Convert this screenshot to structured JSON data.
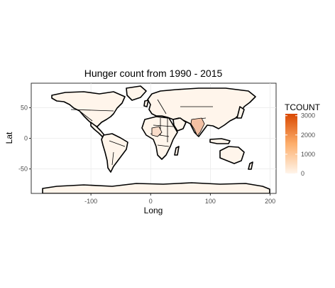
{
  "chart_data": {
    "type": "map",
    "title": "Hunger count from  1990 - 2015",
    "xlabel": "Long",
    "ylabel": "Lat",
    "xlim": [
      -200,
      210
    ],
    "ylim": [
      -90,
      90
    ],
    "x_ticks": [
      -100,
      0,
      100,
      200
    ],
    "y_ticks": [
      -50,
      0,
      50
    ],
    "grid": true,
    "legend": {
      "title": "TCOUNT",
      "position": "right",
      "ticks": [
        0,
        1000,
        2000,
        3000
      ],
      "range": [
        0,
        3100
      ],
      "low_color": "#fff5eb",
      "high_color": "#d94801"
    },
    "highlights": [
      {
        "region": "Nigeria",
        "value": 450
      },
      {
        "region": "India",
        "value": 950
      }
    ]
  }
}
